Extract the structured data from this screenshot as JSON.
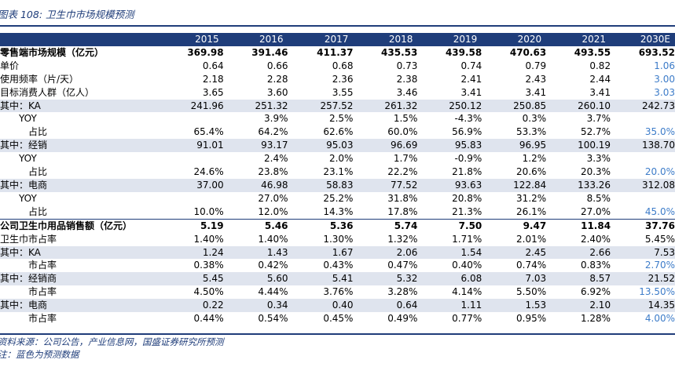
{
  "title": "图表 108:  卫生巾市场规模预测",
  "header": {
    "label": "",
    "years": [
      "2015",
      "2016",
      "2017",
      "2018",
      "2019",
      "2020",
      "2021",
      "2030E"
    ]
  },
  "rows": [
    {
      "label": "零售端市场规模（亿元）",
      "style": "bold",
      "values": [
        "369.98",
        "391.46",
        "411.37",
        "435.53",
        "439.58",
        "470.63",
        "493.55",
        "693.52"
      ]
    },
    {
      "label": "单价",
      "style": "plain",
      "values": [
        "0.64",
        "0.66",
        "0.68",
        "0.73",
        "0.74",
        "0.79",
        "0.82",
        "1.06"
      ]
    },
    {
      "label": "使用频率（片/天）",
      "style": "plain",
      "values": [
        "2.18",
        "2.28",
        "2.36",
        "2.38",
        "2.41",
        "2.43",
        "2.44",
        "3.00"
      ]
    },
    {
      "label": "目标消费人群（亿人）",
      "style": "plain",
      "values": [
        "3.65",
        "3.60",
        "3.55",
        "3.46",
        "3.41",
        "3.41",
        "3.41",
        "3.03"
      ]
    },
    {
      "label": "其中：KA",
      "style": "shade",
      "values": [
        "241.96",
        "251.32",
        "257.52",
        "261.32",
        "250.12",
        "250.85",
        "260.10",
        "242.73"
      ]
    },
    {
      "label": "YOY",
      "style": "yoy",
      "values": [
        "",
        "3.9%",
        "2.5%",
        "1.5%",
        "-4.3%",
        "0.3%",
        "3.7%",
        ""
      ]
    },
    {
      "label": "占比",
      "style": "sub",
      "values": [
        "65.4%",
        "64.2%",
        "62.6%",
        "60.0%",
        "56.9%",
        "53.3%",
        "52.7%",
        "35.0%"
      ]
    },
    {
      "label": "其中：经销",
      "style": "shade",
      "values": [
        "91.01",
        "93.17",
        "95.03",
        "96.69",
        "95.83",
        "96.95",
        "100.19",
        "138.70"
      ]
    },
    {
      "label": "YOY",
      "style": "yoy",
      "values": [
        "",
        "2.4%",
        "2.0%",
        "1.7%",
        "-0.9%",
        "1.2%",
        "3.3%",
        ""
      ]
    },
    {
      "label": "占比",
      "style": "sub",
      "values": [
        "24.6%",
        "23.8%",
        "23.1%",
        "22.2%",
        "21.8%",
        "20.6%",
        "20.3%",
        "20.0%"
      ]
    },
    {
      "label": "其中：电商",
      "style": "shade",
      "values": [
        "37.00",
        "46.98",
        "58.83",
        "77.52",
        "93.63",
        "122.84",
        "133.26",
        "312.08"
      ]
    },
    {
      "label": "YOY",
      "style": "yoy",
      "values": [
        "",
        "27.0%",
        "25.2%",
        "31.8%",
        "20.8%",
        "31.2%",
        "8.5%",
        ""
      ]
    },
    {
      "label": "占比",
      "style": "sub",
      "values": [
        "10.0%",
        "12.0%",
        "14.3%",
        "17.8%",
        "21.3%",
        "26.1%",
        "27.0%",
        "45.0%"
      ]
    },
    {
      "label": "公司卫生巾用品销售额（亿元）",
      "style": "boldrule",
      "values": [
        "5.19",
        "5.46",
        "5.36",
        "5.74",
        "7.50",
        "9.47",
        "11.84",
        "37.76"
      ]
    },
    {
      "label": "卫生巾市占率",
      "style": "plain",
      "values": [
        "1.40%",
        "1.40%",
        "1.30%",
        "1.32%",
        "1.71%",
        "2.01%",
        "2.40%",
        "5.45%"
      ]
    },
    {
      "label": "其中：KA",
      "style": "shade",
      "values": [
        "1.24",
        "1.43",
        "1.67",
        "2.06",
        "1.54",
        "2.45",
        "2.66",
        "7.53"
      ]
    },
    {
      "label": "市占率",
      "style": "sub",
      "values": [
        "0.38%",
        "0.42%",
        "0.43%",
        "0.47%",
        "0.40%",
        "0.74%",
        "0.83%",
        "2.70%"
      ]
    },
    {
      "label": "其中：经销商",
      "style": "shade",
      "values": [
        "5.45",
        "5.60",
        "5.41",
        "5.32",
        "6.08",
        "7.03",
        "8.57",
        "21.52"
      ]
    },
    {
      "label": "市占率",
      "style": "sub",
      "values": [
        "4.50%",
        "4.44%",
        "3.76%",
        "3.28%",
        "4.14%",
        "5.50%",
        "6.92%",
        "13.50%"
      ]
    },
    {
      "label": "其中：电商",
      "style": "shade",
      "values": [
        "0.22",
        "0.34",
        "0.40",
        "0.64",
        "1.11",
        "1.53",
        "2.10",
        "14.35"
      ]
    },
    {
      "label": "市占率",
      "style": "sub",
      "values": [
        "0.44%",
        "0.54%",
        "0.45%",
        "0.49%",
        "0.77%",
        "0.95%",
        "1.28%",
        "4.00%"
      ]
    }
  ],
  "blue_cells": [
    [
      1,
      7
    ],
    [
      2,
      7
    ],
    [
      3,
      7
    ],
    [
      6,
      7
    ],
    [
      9,
      7
    ],
    [
      12,
      7
    ],
    [
      16,
      7
    ],
    [
      18,
      7
    ],
    [
      20,
      7
    ]
  ],
  "colors": {
    "header_bg": "#1f3d7a",
    "shade_bg": "#dfe4ee",
    "forecast_text": "#3d7cc9"
  },
  "notes": {
    "source": "资料来源：公司公告，产业信息网，国盛证券研究所预测",
    "remark": "注：蓝色为预测数据"
  }
}
